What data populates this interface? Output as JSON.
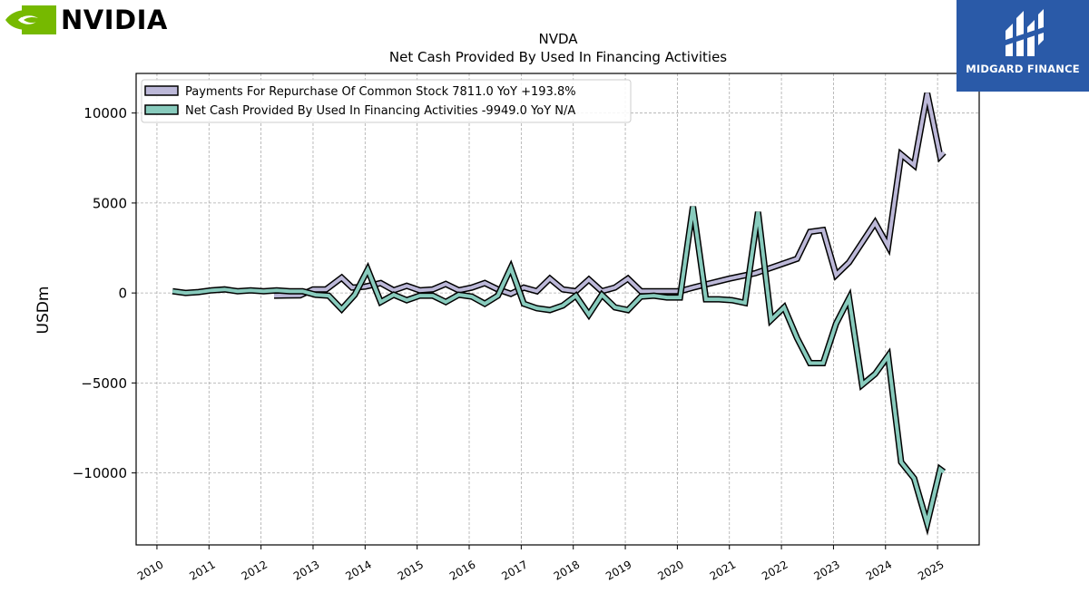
{
  "logos": {
    "nvidia": {
      "text": "NVIDIA",
      "color": "#76b900"
    },
    "midgard": {
      "text": "MIDGARD FINANCE",
      "color": "#2a5aa8"
    }
  },
  "chart_data": {
    "type": "line",
    "title": "NVDA",
    "subtitle": "Net Cash Provided By Used In Financing Activities",
    "xlabel": "",
    "ylabel": "USDm",
    "xlim": [
      2009.6,
      2025.8
    ],
    "ylim": [
      -14000,
      12200
    ],
    "yticks": [
      10000,
      5000,
      0,
      -5000,
      -10000
    ],
    "ytick_labels": [
      "10000",
      "5000",
      "0",
      "−5000",
      "−10000"
    ],
    "xticks": [
      2010,
      2011,
      2012,
      2013,
      2014,
      2015,
      2016,
      2017,
      2018,
      2019,
      2020,
      2021,
      2022,
      2023,
      2024,
      2025
    ],
    "xtick_labels": [
      "2010",
      "2011",
      "2012",
      "2013",
      "2014",
      "2015",
      "2016",
      "2017",
      "2018",
      "2019",
      "2020",
      "2021",
      "2022",
      "2023",
      "2024",
      "2025"
    ],
    "grid": true,
    "legend_position": "top-left",
    "series": [
      {
        "name": "Payments For Repurchase Of Common Stock",
        "legend_label": "Payments For Repurchase Of Common Stock  7811.0 YoY +193.8%",
        "color": "#bcb8d8",
        "points": [
          [
            2012.25,
            -150
          ],
          [
            2012.5,
            -140
          ],
          [
            2012.75,
            -130
          ],
          [
            2013.0,
            200
          ],
          [
            2013.25,
            200
          ],
          [
            2013.55,
            850
          ],
          [
            2013.75,
            300
          ],
          [
            2014.0,
            350
          ],
          [
            2014.3,
            550
          ],
          [
            2014.55,
            150
          ],
          [
            2014.8,
            400
          ],
          [
            2015.05,
            150
          ],
          [
            2015.3,
            200
          ],
          [
            2015.55,
            500
          ],
          [
            2015.8,
            150
          ],
          [
            2016.05,
            300
          ],
          [
            2016.3,
            550
          ],
          [
            2016.55,
            200
          ],
          [
            2016.8,
            -50
          ],
          [
            2017.05,
            300
          ],
          [
            2017.3,
            100
          ],
          [
            2017.55,
            800
          ],
          [
            2017.8,
            200
          ],
          [
            2018.05,
            100
          ],
          [
            2018.3,
            750
          ],
          [
            2018.55,
            100
          ],
          [
            2018.8,
            300
          ],
          [
            2019.05,
            800
          ],
          [
            2019.3,
            100
          ],
          [
            2019.55,
            100
          ],
          [
            2019.8,
            100
          ],
          [
            2020.05,
            100
          ],
          [
            2020.3,
            300
          ],
          [
            2021.0,
            800
          ],
          [
            2021.5,
            1100
          ],
          [
            2022.0,
            1600
          ],
          [
            2022.3,
            1900
          ],
          [
            2022.55,
            3400
          ],
          [
            2022.8,
            3500
          ],
          [
            2023.05,
            1000
          ],
          [
            2023.3,
            1700
          ],
          [
            2023.8,
            3900
          ],
          [
            2024.05,
            2600
          ],
          [
            2024.3,
            7700
          ],
          [
            2024.55,
            7100
          ],
          [
            2024.8,
            11100
          ],
          [
            2025.05,
            7600
          ],
          [
            2025.12,
            7811
          ]
        ]
      },
      {
        "name": "Net Cash Provided By Used In Financing Activities",
        "legend_label": "Net Cash Provided By Used In Financing Activities  -9949.0 YoY N/A",
        "color": "#88cbbd",
        "points": [
          [
            2010.3,
            100
          ],
          [
            2010.55,
            0
          ],
          [
            2010.8,
            50
          ],
          [
            2011.05,
            150
          ],
          [
            2011.3,
            200
          ],
          [
            2011.55,
            100
          ],
          [
            2011.8,
            150
          ],
          [
            2012.05,
            100
          ],
          [
            2012.3,
            150
          ],
          [
            2012.55,
            100
          ],
          [
            2012.8,
            100
          ],
          [
            2013.05,
            -100
          ],
          [
            2013.3,
            -150
          ],
          [
            2013.55,
            -900
          ],
          [
            2013.8,
            -100
          ],
          [
            2014.05,
            1300
          ],
          [
            2014.3,
            -500
          ],
          [
            2014.55,
            -100
          ],
          [
            2014.8,
            -400
          ],
          [
            2015.05,
            -150
          ],
          [
            2015.3,
            -150
          ],
          [
            2015.55,
            -500
          ],
          [
            2015.8,
            -100
          ],
          [
            2016.05,
            -200
          ],
          [
            2016.3,
            -600
          ],
          [
            2016.55,
            -150
          ],
          [
            2016.8,
            1400
          ],
          [
            2017.05,
            -600
          ],
          [
            2017.3,
            -850
          ],
          [
            2017.55,
            -950
          ],
          [
            2017.8,
            -700
          ],
          [
            2018.05,
            -150
          ],
          [
            2018.3,
            -1200
          ],
          [
            2018.55,
            -100
          ],
          [
            2018.8,
            -800
          ],
          [
            2019.05,
            -950
          ],
          [
            2019.3,
            -200
          ],
          [
            2019.55,
            -150
          ],
          [
            2019.8,
            -250
          ],
          [
            2020.05,
            -250
          ],
          [
            2020.3,
            4800
          ],
          [
            2020.55,
            -350
          ],
          [
            2020.8,
            -350
          ],
          [
            2021.05,
            -400
          ],
          [
            2021.3,
            -550
          ],
          [
            2021.55,
            4500
          ],
          [
            2021.8,
            -1500
          ],
          [
            2022.05,
            -800
          ],
          [
            2022.3,
            -2500
          ],
          [
            2022.55,
            -3900
          ],
          [
            2022.8,
            -3900
          ],
          [
            2023.05,
            -1700
          ],
          [
            2023.3,
            -300
          ],
          [
            2023.55,
            -5100
          ],
          [
            2023.8,
            -4500
          ],
          [
            2024.05,
            -3500
          ],
          [
            2024.3,
            -9400
          ],
          [
            2024.55,
            -10300
          ],
          [
            2024.8,
            -12800
          ],
          [
            2025.05,
            -9800
          ],
          [
            2025.12,
            -9949
          ]
        ]
      }
    ]
  }
}
